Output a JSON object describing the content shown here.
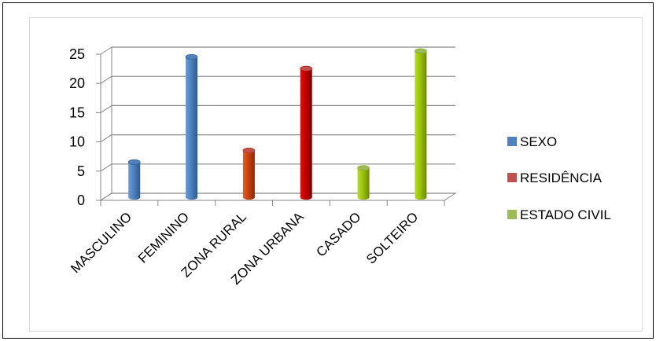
{
  "chart_data": {
    "type": "bar",
    "categories": [
      "MASCULINO",
      "FEMININO",
      "ZONA RURAL",
      "ZONA URBANA",
      "CASADO",
      "SOLTEIRO"
    ],
    "series": [
      {
        "name": "SEXO",
        "values": [
          6,
          24,
          null,
          null,
          null,
          null
        ],
        "color": "#4f81bd"
      },
      {
        "name": "RESIDÊNCIA",
        "values": [
          null,
          null,
          8,
          22,
          null,
          null
        ],
        "color": "#c0504d"
      },
      {
        "name": "ESTADO CIVIL",
        "values": [
          null,
          null,
          null,
          null,
          5,
          25
        ],
        "color": "#9bbb59"
      }
    ],
    "bar_colors": [
      "#4f81bd",
      "#4f81bd",
      "#c0504d",
      "#c0504d",
      "#9bbb59",
      "#9bbb59"
    ],
    "bar_shade_colors": [
      "#2c5a8f",
      "#2c5a8f",
      "#c0390b",
      "#b00000",
      "#8cb000",
      "#8cb000"
    ],
    "y_ticks": [
      "0",
      "5",
      "10",
      "15",
      "20",
      "25"
    ],
    "ylim": [
      0,
      25
    ],
    "grid": true,
    "legend_position": "right"
  }
}
